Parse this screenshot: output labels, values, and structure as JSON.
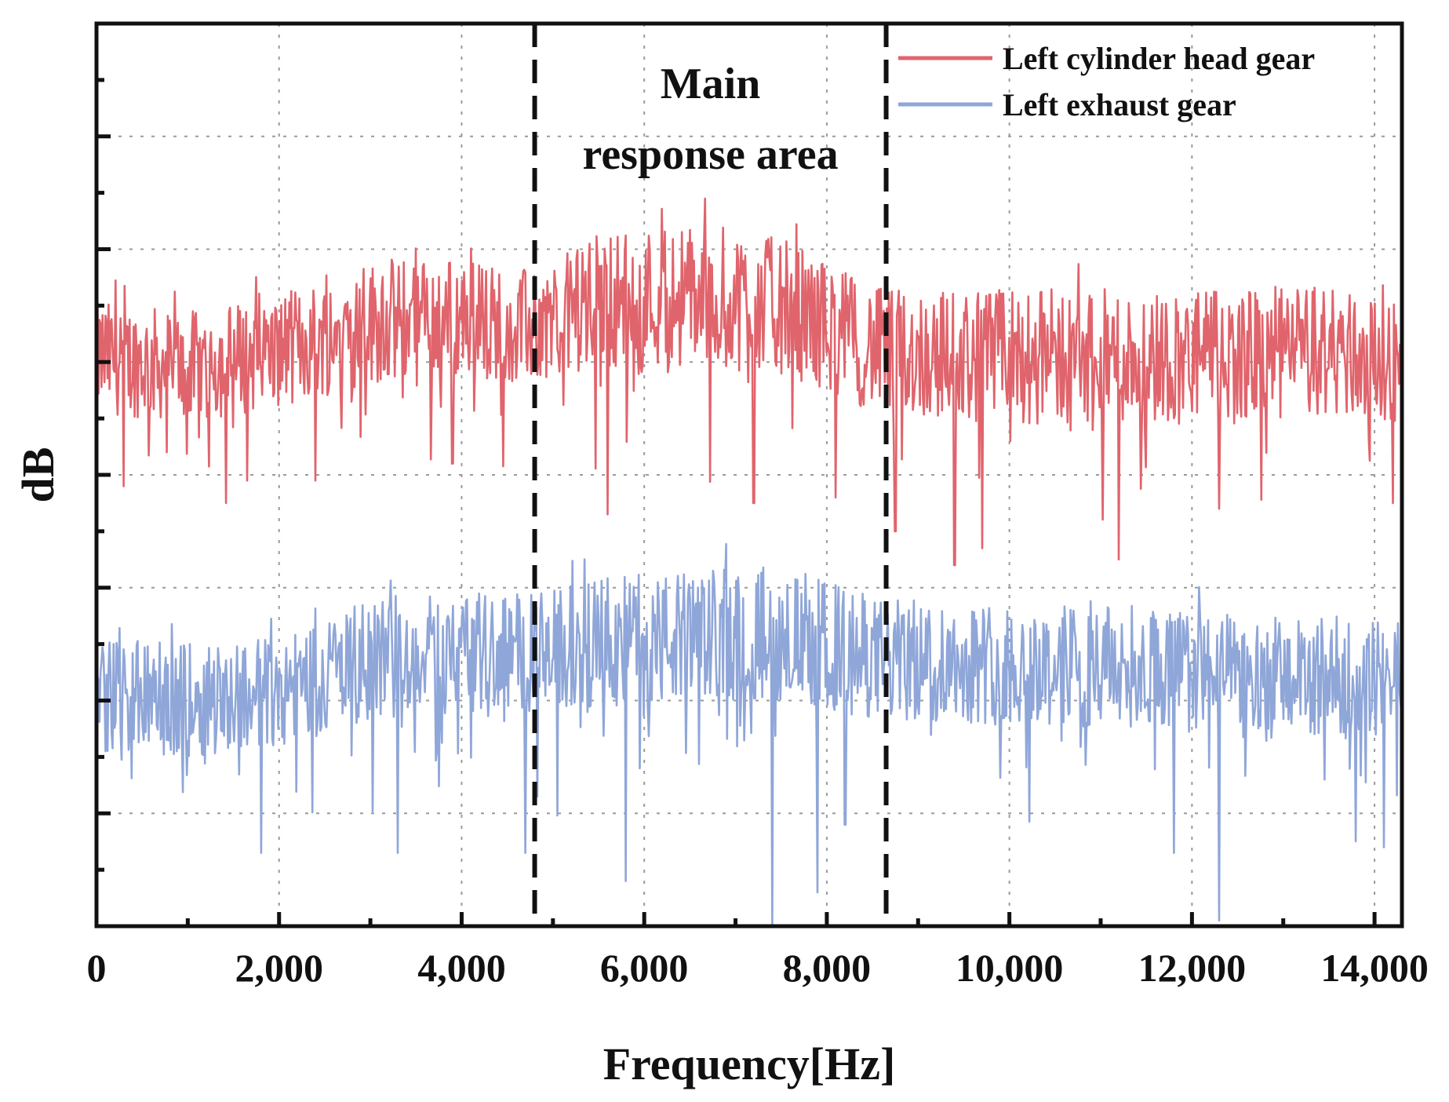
{
  "chart_data": {
    "type": "line",
    "title": "",
    "xlabel": "Frequency[Hz]",
    "ylabel": "dB",
    "xlim": [
      0,
      14300
    ],
    "ylim": [
      0,
      8
    ],
    "x_ticks": [
      0,
      2000,
      4000,
      6000,
      8000,
      10000,
      12000,
      14000
    ],
    "x_tick_labels": [
      "0",
      "2,000",
      "4,000",
      "6,000",
      "8,000",
      "10,000",
      "12,000",
      "14,000"
    ],
    "y_tick_labels_shown": false,
    "grid": true,
    "legend_position": "top-right",
    "regions": [
      {
        "label_line1": "Main",
        "label_line2": "response area",
        "x_start": 4800,
        "x_end": 8650
      }
    ],
    "series": [
      {
        "name": "Left cylinder head gear",
        "color": "#e0646c",
        "anchors": {
          "x": [
            0,
            1000,
            2000,
            3000,
            4000,
            4800,
            5500,
            6500,
            7500,
            8600,
            9500,
            10500,
            11500,
            12500,
            13500,
            14300
          ],
          "mean": [
            5.05,
            4.95,
            5.1,
            5.35,
            5.4,
            5.3,
            5.55,
            5.6,
            5.5,
            5.1,
            5.05,
            5.05,
            5.05,
            5.05,
            5.1,
            5.0
          ],
          "amplitude": [
            0.5,
            0.5,
            0.5,
            0.55,
            0.55,
            0.5,
            0.6,
            0.65,
            0.6,
            0.55,
            0.6,
            0.6,
            0.6,
            0.6,
            0.6,
            0.55
          ]
        },
        "dips": [
          [
            300,
            3.9
          ],
          [
            1650,
            3.95
          ],
          [
            2400,
            3.95
          ],
          [
            3900,
            4.1
          ],
          [
            5600,
            3.65
          ],
          [
            7200,
            3.75
          ],
          [
            8100,
            3.8
          ],
          [
            8750,
            3.5
          ],
          [
            9400,
            3.2
          ],
          [
            9700,
            3.35
          ],
          [
            11200,
            3.25
          ],
          [
            12300,
            3.7
          ],
          [
            14200,
            3.75
          ]
        ]
      },
      {
        "name": "Left exhaust gear",
        "color": "#8fa6d8",
        "anchors": {
          "x": [
            0,
            1000,
            2000,
            3000,
            4000,
            4800,
            5500,
            6500,
            7500,
            8600,
            9500,
            10500,
            11500,
            12500,
            13500,
            14300
          ],
          "mean": [
            2.05,
            2.0,
            2.1,
            2.35,
            2.45,
            2.4,
            2.5,
            2.55,
            2.6,
            2.35,
            2.35,
            2.3,
            2.3,
            2.2,
            2.2,
            2.2
          ],
          "amplitude": [
            0.5,
            0.5,
            0.5,
            0.55,
            0.55,
            0.55,
            0.6,
            0.6,
            0.6,
            0.55,
            0.55,
            0.55,
            0.55,
            0.55,
            0.55,
            0.5
          ]
        },
        "dips": [
          [
            1800,
            0.65
          ],
          [
            3300,
            0.65
          ],
          [
            4700,
            0.65
          ],
          [
            5800,
            0.4
          ],
          [
            7400,
            0.0
          ],
          [
            7900,
            0.3
          ],
          [
            8200,
            0.9
          ],
          [
            11800,
            0.65
          ],
          [
            12300,
            0.05
          ],
          [
            14100,
            0.7
          ]
        ]
      }
    ]
  }
}
